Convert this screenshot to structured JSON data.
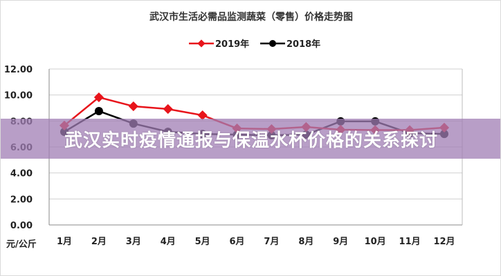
{
  "chart_data": {
    "type": "line",
    "title": "武汉市生活必需品监测蔬菜（零售）价格走势图",
    "xlabel": "",
    "ylabel": "元/公斤",
    "ylim": [
      0,
      12
    ],
    "yticks": [
      "0.00",
      "2.00",
      "4.00",
      "6.00",
      "8.00",
      "10.00",
      "12.00"
    ],
    "categories": [
      "1月",
      "2月",
      "3月",
      "4月",
      "5月",
      "6月",
      "7月",
      "8月",
      "9月",
      "10月",
      "11月",
      "12月"
    ],
    "legend_position": "top",
    "grid": true,
    "series": [
      {
        "name": "2019年",
        "color": "#e8141b",
        "marker": "diamond",
        "values": [
          7.65,
          9.82,
          9.13,
          8.92,
          8.44,
          7.43,
          7.38,
          7.54,
          7.33,
          7.3,
          7.3,
          7.49
        ]
      },
      {
        "name": "2018年",
        "color": "#000000",
        "marker": "circle",
        "values": [
          7.17,
          8.76,
          7.8,
          7.17,
          7.0,
          6.95,
          6.9,
          6.95,
          7.97,
          7.97,
          7.06,
          7.0
        ]
      }
    ]
  },
  "banner": {
    "text": "武汉实时疫情通报与保温水杯价格的关系探讨",
    "color": "#a07db4"
  }
}
